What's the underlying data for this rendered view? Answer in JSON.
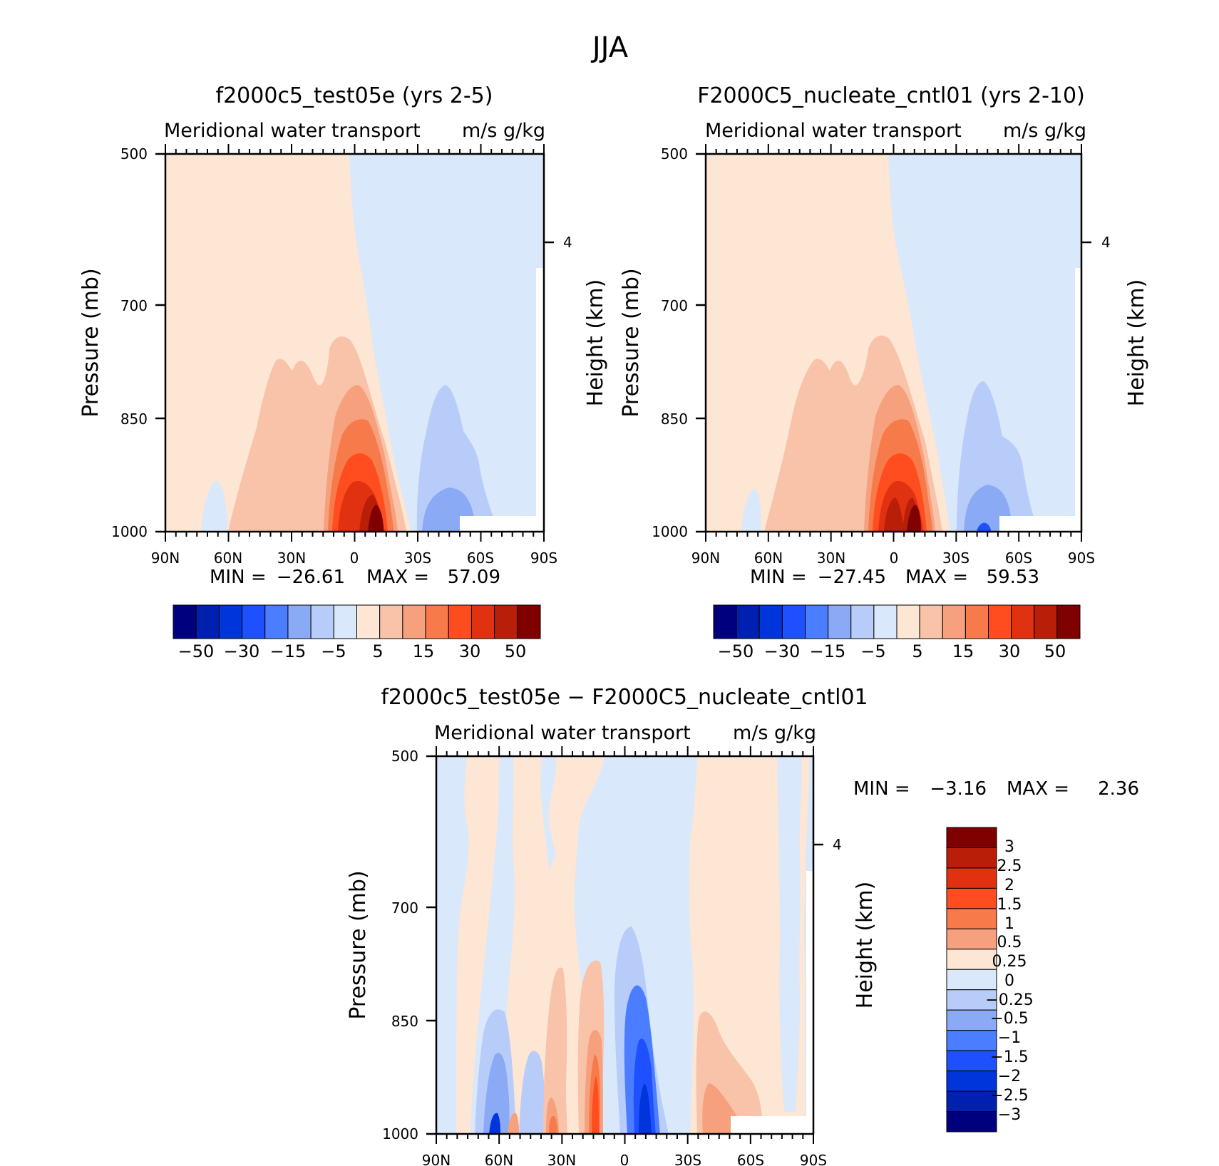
{
  "figure": {
    "title": "JJA"
  },
  "colors": {
    "axis": "#000000",
    "full_scale": [
      "#00007f",
      "#0020b0",
      "#0035dc",
      "#1f50ff",
      "#4a7dff",
      "#8aaaf5",
      "#b8ccfa",
      "#d9e8fa",
      "#fde6d4",
      "#f8c3a8",
      "#f6a07d",
      "#f67a4a",
      "#ff4d1f",
      "#e03210",
      "#b81e08",
      "#800000"
    ],
    "diff_scale": [
      "#800000",
      "#b81e08",
      "#e03210",
      "#ff4d1f",
      "#f67a4a",
      "#f6a07d",
      "#fde6d4",
      "#d9e8fa",
      "#b8ccfa",
      "#8aaaf5",
      "#4a7dff",
      "#1f50ff",
      "#0035dc",
      "#0020b0",
      "#00007f"
    ]
  },
  "chart_data": [
    {
      "type": "heatmap",
      "title": "f2000c5_test05e (yrs 2-5)",
      "subtitle_left": "Meridional water transport",
      "subtitle_right": "m/s g/kg",
      "xlabel": "",
      "ylabel": "Pressure (mb)",
      "ylabel_right": "Height (km)",
      "x_ticks": [
        "90N",
        "60N",
        "30N",
        "0",
        "30S",
        "60S",
        "90S"
      ],
      "y_ticks": [
        "500",
        "700",
        "850",
        "1000"
      ],
      "right_ticks": [
        "4"
      ],
      "min_label": "MIN =",
      "min": "−26.61",
      "max_label": "MAX =",
      "max": "57.09",
      "colorbar_labels": [
        "−50",
        "−30",
        "−15",
        "−5",
        "5",
        "15",
        "30",
        "50"
      ]
    },
    {
      "type": "heatmap",
      "title": "F2000C5_nucleate_cntl01 (yrs 2-10)",
      "subtitle_left": "Meridional water transport",
      "subtitle_right": "m/s g/kg",
      "xlabel": "",
      "ylabel": "Pressure (mb)",
      "ylabel_right": "Height (km)",
      "x_ticks": [
        "90N",
        "60N",
        "30N",
        "0",
        "30S",
        "60S",
        "90S"
      ],
      "y_ticks": [
        "500",
        "700",
        "850",
        "1000"
      ],
      "right_ticks": [
        "4"
      ],
      "min_label": "MIN =",
      "min": "−27.45",
      "max_label": "MAX =",
      "max": "59.53",
      "colorbar_labels": [
        "−50",
        "−30",
        "−15",
        "−5",
        "5",
        "15",
        "30",
        "50"
      ]
    },
    {
      "type": "heatmap",
      "title": "f2000c5_test05e − F2000C5_nucleate_cntl01",
      "subtitle_left": "Meridional water transport",
      "subtitle_right": "m/s g/kg",
      "xlabel": "",
      "ylabel": "Pressure (mb)",
      "ylabel_right": "Height (km)",
      "x_ticks": [
        "90N",
        "60N",
        "30N",
        "0",
        "30S",
        "60S",
        "90S"
      ],
      "y_ticks": [
        "500",
        "700",
        "850",
        "1000"
      ],
      "right_ticks": [
        "4"
      ],
      "min_label": "MIN =",
      "min": "−3.16",
      "max_label": "MAX =",
      "max": "2.36",
      "colorbar_labels": [
        "3",
        "2.5",
        "2",
        "1.5",
        "1",
        "0.5",
        "0.25",
        "0",
        "−0.25",
        "−0.5",
        "−1",
        "−1.5",
        "−2",
        "−2.5",
        "−3"
      ]
    }
  ]
}
